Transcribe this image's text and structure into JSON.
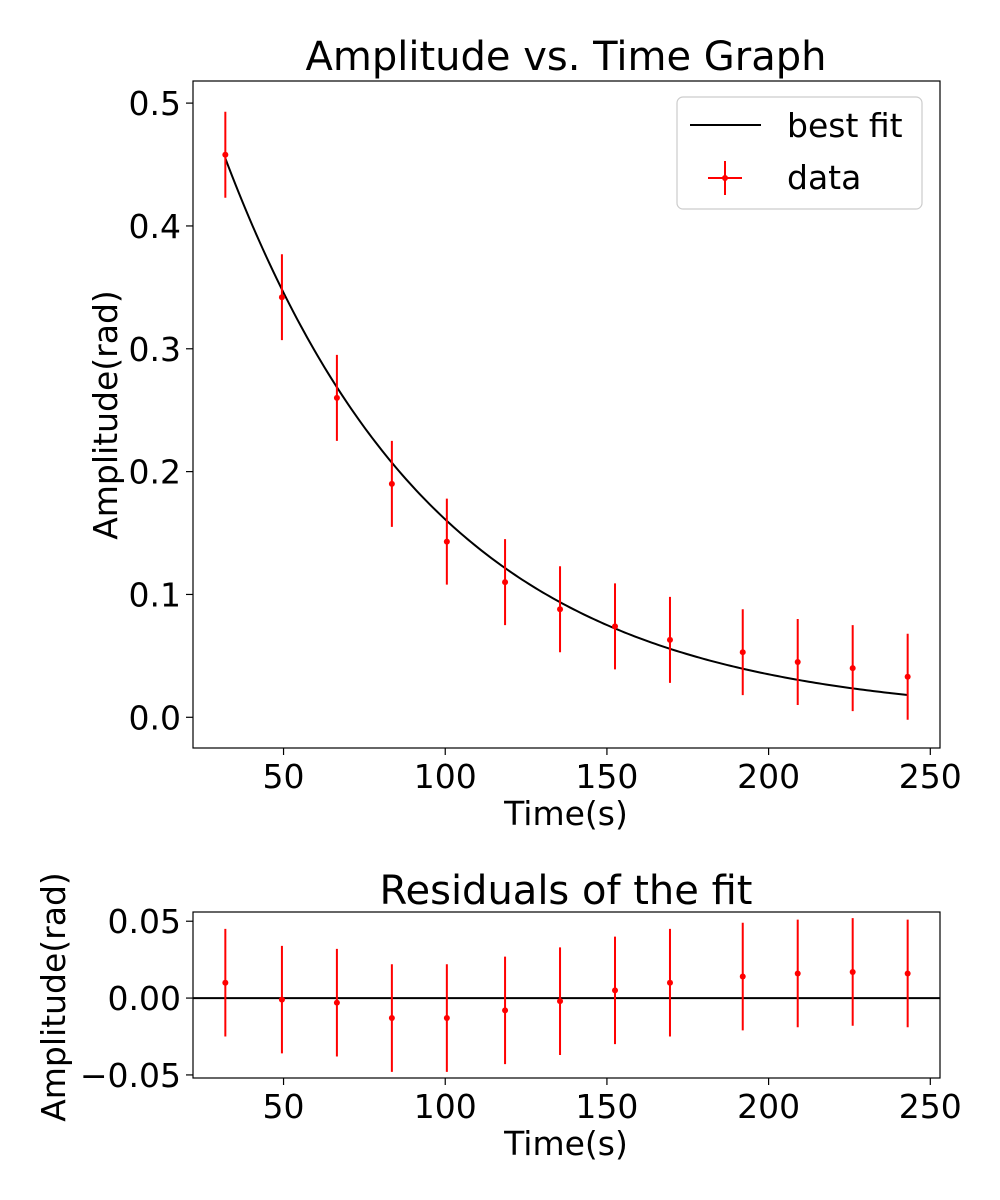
{
  "chart_data": [
    {
      "type": "scatter",
      "title": "Amplitude vs. Time Graph",
      "xlabel": "Time(s)",
      "ylabel": "Amplitude(rad)",
      "xlim": [
        22,
        253
      ],
      "ylim": [
        -0.025,
        0.518
      ],
      "xticks": [
        50,
        100,
        150,
        200,
        250
      ],
      "xtick_labels": [
        "50",
        "100",
        "150",
        "200",
        "250"
      ],
      "yticks": [
        0.0,
        0.1,
        0.2,
        0.3,
        0.4,
        0.5
      ],
      "ytick_labels": [
        "0.0",
        "0.1",
        "0.2",
        "0.3",
        "0.4",
        "0.5"
      ],
      "grid": false,
      "legend": {
        "placement": "top-right",
        "entries": [
          {
            "label": "best fit",
            "color": "#000000",
            "style": "line"
          },
          {
            "label": "data",
            "color": "#ff0000",
            "style": "errorbar"
          }
        ]
      },
      "series": [
        {
          "name": "data",
          "color": "#ff0000",
          "x": [
            32,
            49.5,
            66.5,
            83.5,
            100.5,
            118.5,
            135.5,
            152.5,
            169.5,
            192,
            209,
            226,
            243
          ],
          "y": [
            0.458,
            0.342,
            0.26,
            0.19,
            0.143,
            0.11,
            0.088,
            0.074,
            0.063,
            0.053,
            0.045,
            0.04,
            0.033
          ],
          "yerr": 0.035
        },
        {
          "name": "best fit",
          "color": "#000000",
          "model": "exponential",
          "amplitude": 0.455,
          "x0": 32,
          "tau": 65.5,
          "x_range": [
            32,
            243
          ]
        }
      ]
    },
    {
      "type": "scatter",
      "title": "Residuals of the fit",
      "xlabel": "Time(s)",
      "ylabel": "Amplitude(rad)",
      "xlim": [
        22,
        253
      ],
      "ylim": [
        -0.052,
        0.056
      ],
      "xticks": [
        50,
        100,
        150,
        200,
        250
      ],
      "xtick_labels": [
        "50",
        "100",
        "150",
        "200",
        "250"
      ],
      "yticks": [
        0.05,
        0.0,
        -0.05
      ],
      "ytick_labels": [
        "0.05",
        "0.00",
        "−0.05"
      ],
      "grid": false,
      "zero_line": true,
      "series": [
        {
          "name": "residuals",
          "color": "#ff0000",
          "x": [
            32,
            49.5,
            66.5,
            83.5,
            100.5,
            118.5,
            135.5,
            152.5,
            169.5,
            192,
            209,
            226,
            243
          ],
          "y": [
            0.01,
            -0.001,
            -0.003,
            -0.013,
            -0.013,
            -0.008,
            -0.002,
            0.005,
            0.01,
            0.014,
            0.016,
            0.017,
            0.016
          ],
          "yerr": 0.035
        }
      ]
    }
  ]
}
